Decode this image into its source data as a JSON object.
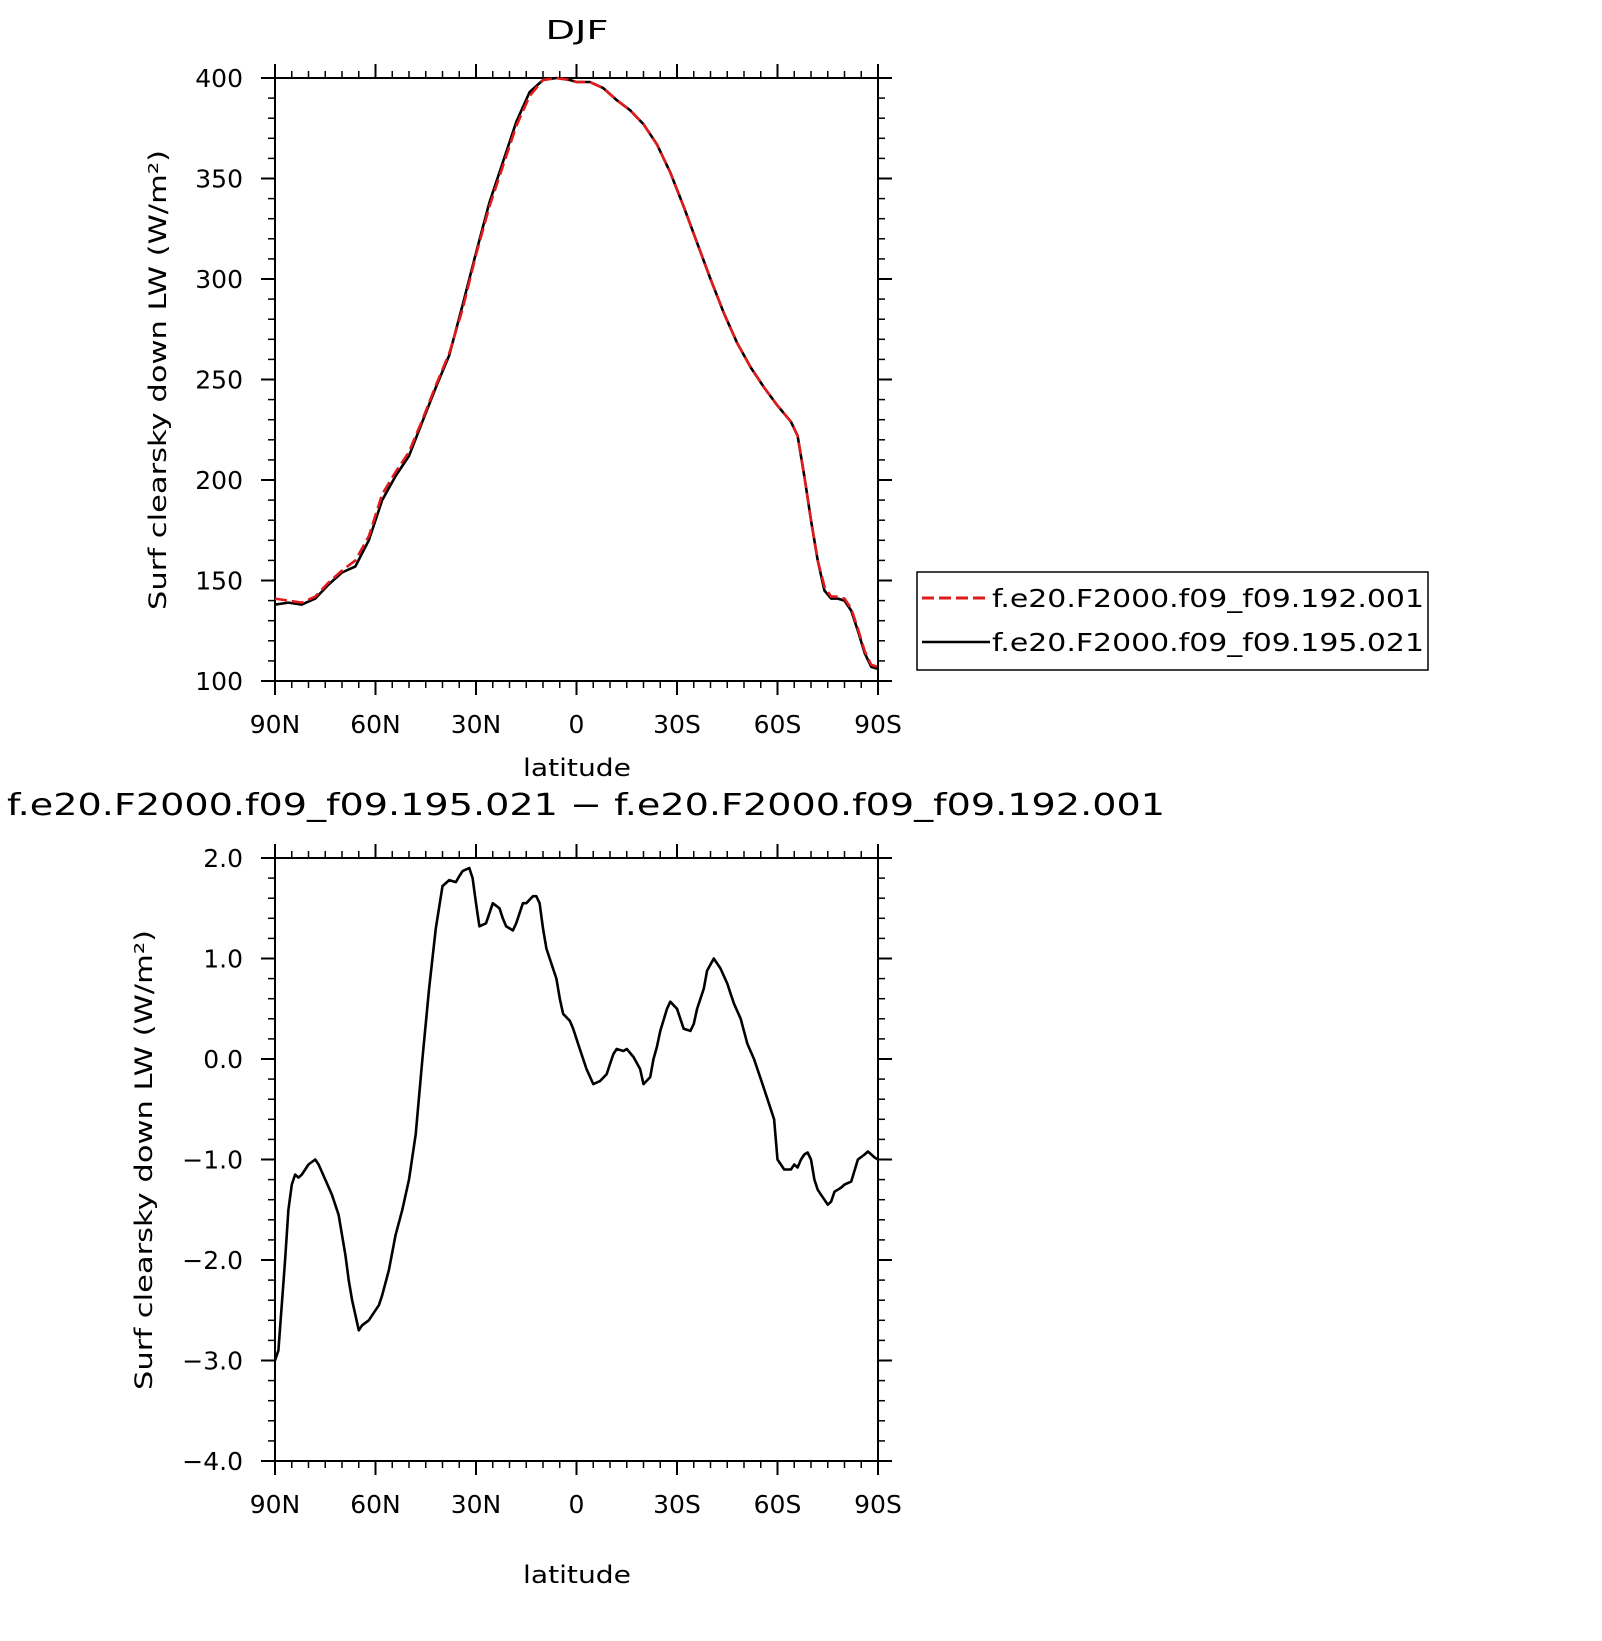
{
  "chart_data": [
    {
      "type": "line",
      "title": "DJF",
      "xlabel": "latitude",
      "ylabel": "Surf clearsky down LW (W/m²)",
      "xlim": [
        90,
        -90
      ],
      "ylim": [
        100,
        400
      ],
      "yticks": [
        100,
        150,
        200,
        250,
        300,
        350,
        400
      ],
      "yticklabels": [
        "100",
        "150",
        "200",
        "250",
        "300",
        "350",
        "400"
      ],
      "xticks": [
        90,
        60,
        30,
        0,
        -30,
        -60,
        -90
      ],
      "xticklabels": [
        "90N",
        "60N",
        "30N",
        "0",
        "30S",
        "60S",
        "90S"
      ],
      "legend_position": "right",
      "series": [
        {
          "name": "f.e20.F2000.f09_f09.192.001",
          "color": "#e31a1c",
          "dash": "dashed",
          "x": [
            90,
            86,
            82,
            78,
            74,
            70,
            66,
            62,
            58,
            54,
            50,
            46,
            42,
            38,
            34,
            30,
            26,
            22,
            18,
            14,
            10,
            6,
            2,
            0,
            -4,
            -8,
            -12,
            -16,
            -20,
            -24,
            -28,
            -32,
            -36,
            -40,
            -44,
            -48,
            -52,
            -56,
            -60,
            -62,
            -64,
            -66,
            -68,
            -70,
            -72,
            -74,
            -76,
            -78,
            -80,
            -82,
            -84,
            -86,
            -88,
            -90
          ],
          "values": [
            141,
            140,
            139,
            142,
            149,
            155,
            160,
            172,
            193,
            204,
            214,
            230,
            247,
            263,
            285,
            312,
            336,
            356,
            376,
            391,
            399,
            400,
            399,
            398,
            398,
            395,
            389,
            384,
            377,
            367,
            353,
            336,
            318,
            300,
            283,
            268,
            256,
            246,
            237,
            233,
            229,
            222,
            202,
            180,
            160,
            147,
            142,
            142,
            141,
            136,
            126,
            115,
            108,
            107
          ]
        },
        {
          "name": "f.e20.F2000.f09_f09.195.021",
          "color": "#000000",
          "dash": "solid",
          "x": [
            90,
            86,
            82,
            78,
            74,
            70,
            66,
            62,
            58,
            54,
            50,
            46,
            42,
            38,
            34,
            30,
            26,
            22,
            18,
            14,
            10,
            6,
            2,
            0,
            -4,
            -8,
            -12,
            -16,
            -20,
            -24,
            -28,
            -32,
            -36,
            -40,
            -44,
            -48,
            -52,
            -56,
            -60,
            -62,
            -64,
            -66,
            -68,
            -70,
            -72,
            -74,
            -76,
            -78,
            -80,
            -82,
            -84,
            -86,
            -88,
            -90
          ],
          "values": [
            138,
            139,
            138,
            141,
            148,
            154,
            157,
            170,
            190,
            202,
            212,
            229,
            246,
            262,
            287,
            313,
            338,
            358,
            378,
            393,
            399,
            400,
            399,
            398,
            398,
            395,
            389,
            384,
            377,
            367,
            353,
            336,
            318,
            300,
            283,
            268,
            256,
            246,
            237,
            233,
            229,
            222,
            202,
            180,
            160,
            145,
            141,
            141,
            140,
            135,
            125,
            114,
            107,
            106
          ]
        }
      ]
    },
    {
      "type": "line",
      "title": "f.e20.F2000.f09_f09.195.021 − f.e20.F2000.f09_f09.192.001",
      "xlabel": "latitude",
      "ylabel": "Surf clearsky down LW (W/m²)",
      "xlim": [
        90,
        -90
      ],
      "ylim": [
        -4,
        2
      ],
      "yticks": [
        -4,
        -3,
        -2,
        -1,
        0,
        1,
        2
      ],
      "yticklabels": [
        "−4.0",
        "−3.0",
        "−2.0",
        "−1.0",
        "0.0",
        "1.0",
        "2.0"
      ],
      "xticks": [
        90,
        60,
        30,
        0,
        -30,
        -60,
        -90
      ],
      "xticklabels": [
        "90N",
        "60N",
        "30N",
        "0",
        "30S",
        "60S",
        "90S"
      ],
      "series": [
        {
          "color": "#000000",
          "dash": "solid",
          "x": [
            90,
            89,
            87,
            86,
            85,
            84,
            83,
            82,
            80,
            78,
            77,
            75,
            73,
            71,
            69,
            68,
            67,
            65,
            64,
            62,
            61,
            59,
            58,
            56,
            54,
            52,
            50,
            48,
            46,
            44,
            42,
            40,
            38,
            36,
            35,
            34,
            32,
            31,
            30,
            29,
            27,
            26,
            25,
            23,
            22,
            21,
            19,
            18,
            16,
            15,
            13,
            12,
            11,
            10,
            9,
            8,
            6,
            5,
            4,
            2,
            1,
            -1,
            -3,
            -5,
            -7,
            -9,
            -10,
            -11,
            -12,
            -14,
            -15,
            -17,
            -19,
            -20,
            -22,
            -23,
            -24,
            -25,
            -27,
            -28,
            -30,
            -32,
            -34,
            -35,
            -36,
            -38,
            -39,
            -41,
            -43,
            -45,
            -46,
            -47,
            -49,
            -51,
            -53,
            -55,
            -57,
            -59,
            -60,
            -62,
            -64,
            -65,
            -66,
            -67,
            -68,
            -69,
            -70,
            -71,
            -72,
            -73,
            -74,
            -75,
            -76,
            -77,
            -78,
            -79,
            -80,
            -82,
            -84,
            -86,
            -87,
            -88,
            -89,
            -90
          ],
          "values": [
            -3.0,
            -2.9,
            -2.0,
            -1.5,
            -1.25,
            -1.15,
            -1.18,
            -1.15,
            -1.05,
            -1.0,
            -1.05,
            -1.2,
            -1.35,
            -1.55,
            -1.95,
            -2.2,
            -2.4,
            -2.7,
            -2.65,
            -2.6,
            -2.55,
            -2.45,
            -2.35,
            -2.1,
            -1.75,
            -1.5,
            -1.2,
            -0.75,
            0.0,
            0.7,
            1.3,
            1.72,
            1.78,
            1.76,
            1.82,
            1.87,
            1.9,
            1.8,
            1.55,
            1.32,
            1.35,
            1.45,
            1.55,
            1.5,
            1.4,
            1.32,
            1.28,
            1.35,
            1.55,
            1.55,
            1.62,
            1.62,
            1.55,
            1.3,
            1.1,
            1.0,
            0.8,
            0.6,
            0.45,
            0.38,
            0.3,
            0.1,
            -0.1,
            -0.25,
            -0.22,
            -0.15,
            -0.05,
            0.05,
            0.1,
            0.08,
            0.1,
            0.02,
            -0.1,
            -0.25,
            -0.18,
            0.0,
            0.12,
            0.28,
            0.5,
            0.57,
            0.5,
            0.3,
            0.28,
            0.35,
            0.5,
            0.7,
            0.88,
            1.0,
            0.9,
            0.75,
            0.65,
            0.55,
            0.4,
            0.15,
            0.0,
            -0.2,
            -0.4,
            -0.6,
            -1.0,
            -1.1,
            -1.1,
            -1.05,
            -1.08,
            -1.0,
            -0.95,
            -0.93,
            -1.0,
            -1.2,
            -1.3,
            -1.35,
            -1.4,
            -1.45,
            -1.42,
            -1.32,
            -1.3,
            -1.28,
            -1.25,
            -1.22,
            -1.0,
            -0.95,
            -0.92,
            -0.95,
            -0.98,
            -1.0
          ]
        }
      ]
    }
  ]
}
